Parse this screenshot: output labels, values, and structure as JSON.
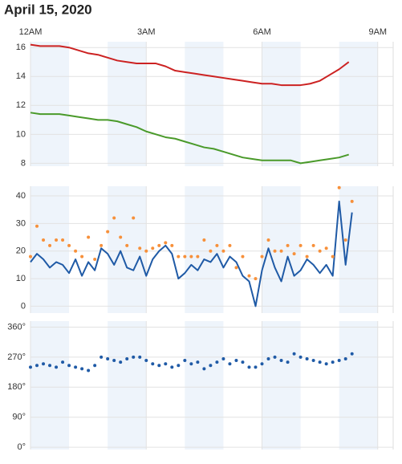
{
  "title": "April 15, 2020",
  "chart_data": [
    {
      "type": "line",
      "x": [
        0,
        0.25,
        0.5,
        0.75,
        1,
        1.25,
        1.5,
        1.75,
        2,
        2.25,
        2.5,
        2.75,
        3,
        3.25,
        3.5,
        3.75,
        4,
        4.25,
        4.5,
        4.75,
        5,
        5.25,
        5.5,
        5.75,
        6,
        6.25,
        6.5,
        6.75,
        7,
        7.25,
        7.5,
        7.75,
        8,
        8.25
      ],
      "xlim": [
        0,
        9.4
      ],
      "xticks": [
        {
          "value": 0,
          "label": "12AM"
        },
        {
          "value": 3,
          "label": "3AM"
        },
        {
          "value": 6,
          "label": "6AM"
        },
        {
          "value": 9,
          "label": "9AM"
        }
      ],
      "ylim": [
        7.8,
        16.4
      ],
      "yticks": [
        8,
        10,
        12,
        14,
        16
      ],
      "grid": true,
      "series": [
        {
          "color": "#cc2222",
          "values": [
            16.2,
            16.1,
            16.1,
            16.1,
            16.0,
            15.8,
            15.6,
            15.5,
            15.3,
            15.1,
            15.0,
            14.9,
            14.9,
            14.9,
            14.7,
            14.4,
            14.3,
            14.2,
            14.1,
            14.0,
            13.9,
            13.8,
            13.7,
            13.6,
            13.5,
            13.5,
            13.4,
            13.4,
            13.4,
            13.5,
            13.7,
            14.1,
            14.5,
            15.0
          ]
        },
        {
          "color": "#4a9a2a",
          "values": [
            11.5,
            11.4,
            11.4,
            11.4,
            11.3,
            11.2,
            11.1,
            11.0,
            11.0,
            10.9,
            10.7,
            10.5,
            10.2,
            10.0,
            9.8,
            9.7,
            9.5,
            9.3,
            9.1,
            9.0,
            8.8,
            8.6,
            8.4,
            8.3,
            8.2,
            8.2,
            8.2,
            8.2,
            8.0,
            8.1,
            8.2,
            8.3,
            8.4,
            8.6
          ]
        }
      ]
    },
    {
      "type": "line",
      "x": [
        0,
        0.1667,
        0.3333,
        0.5,
        0.6667,
        0.8333,
        1,
        1.1667,
        1.3333,
        1.5,
        1.6667,
        1.8333,
        2,
        2.1667,
        2.3333,
        2.5,
        2.6667,
        2.8333,
        3,
        3.1667,
        3.3333,
        3.5,
        3.6667,
        3.8333,
        4,
        4.1667,
        4.3333,
        4.5,
        4.6667,
        4.8333,
        5,
        5.1667,
        5.3333,
        5.5,
        5.6667,
        5.8333,
        6,
        6.1667,
        6.3333,
        6.5,
        6.6667,
        6.8333,
        7,
        7.1667,
        7.3333,
        7.5,
        7.6667,
        7.8333,
        8,
        8.1667,
        8.3333
      ],
      "xlim": [
        0,
        9.4
      ],
      "ylim": [
        -2.5,
        43.5
      ],
      "yticks": [
        0,
        10,
        20,
        30,
        40
      ],
      "grid": true,
      "series": [
        {
          "color": "#1f5aa6",
          "values": [
            16,
            19,
            17,
            14,
            16,
            15,
            12,
            17,
            11,
            16,
            13,
            21,
            19,
            15,
            20,
            14,
            13,
            18,
            11,
            17,
            20,
            22,
            19,
            10,
            12,
            15,
            13,
            17,
            16,
            19,
            14,
            18,
            16,
            11,
            9,
            0,
            13,
            21,
            14,
            9,
            18,
            11,
            13,
            17,
            15,
            12,
            15,
            11,
            38,
            15,
            34
          ]
        },
        {
          "color": "#f7903a",
          "marker": "dot",
          "values": [
            18,
            29,
            24,
            22,
            24,
            24,
            22,
            20,
            18,
            25,
            17,
            22,
            27,
            32,
            25,
            22,
            32,
            21,
            20,
            21,
            22,
            23,
            22,
            18,
            18,
            18,
            18,
            24,
            20,
            22,
            20,
            22,
            14,
            18,
            11,
            10,
            18,
            24,
            20,
            20,
            22,
            19,
            22,
            18,
            22,
            20,
            21,
            18,
            43,
            24,
            38
          ]
        }
      ]
    },
    {
      "type": "scatter",
      "x": [
        0,
        0.1667,
        0.3333,
        0.5,
        0.6667,
        0.8333,
        1,
        1.1667,
        1.3333,
        1.5,
        1.6667,
        1.8333,
        2,
        2.1667,
        2.3333,
        2.5,
        2.6667,
        2.8333,
        3,
        3.1667,
        3.3333,
        3.5,
        3.6667,
        3.8333,
        4,
        4.1667,
        4.3333,
        4.5,
        4.6667,
        4.8333,
        5,
        5.1667,
        5.3333,
        5.5,
        5.6667,
        5.8333,
        6,
        6.1667,
        6.3333,
        6.5,
        6.6667,
        6.8333,
        7,
        7.1667,
        7.3333,
        7.5,
        7.6667,
        7.8333,
        8,
        8.1667,
        8.3333
      ],
      "xlim": [
        0,
        9.4
      ],
      "ylim": [
        -7,
        378
      ],
      "yticks": [
        {
          "value": 0,
          "label": "0°"
        },
        {
          "value": 90,
          "label": "90°"
        },
        {
          "value": 180,
          "label": "180°"
        },
        {
          "value": 270,
          "label": "270°"
        },
        {
          "value": 360,
          "label": "360°"
        }
      ],
      "grid": true,
      "color": "#1f5aa6",
      "values": [
        240,
        245,
        250,
        245,
        240,
        255,
        245,
        240,
        235,
        230,
        245,
        270,
        265,
        260,
        255,
        265,
        270,
        270,
        260,
        250,
        245,
        250,
        240,
        245,
        260,
        250,
        255,
        235,
        245,
        255,
        265,
        250,
        260,
        255,
        240,
        240,
        250,
        265,
        270,
        260,
        255,
        280,
        270,
        265,
        260,
        255,
        250,
        255,
        260,
        265,
        280
      ]
    }
  ]
}
